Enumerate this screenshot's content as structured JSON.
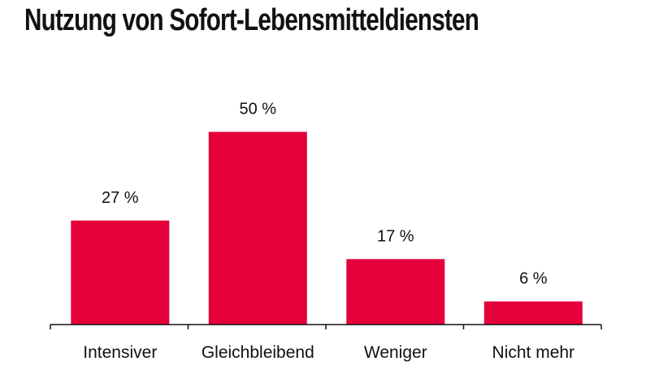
{
  "chart_data": {
    "type": "bar",
    "title": "Nutzung von Sofort-Lebensmitteldiensten",
    "categories": [
      "Intensiver",
      "Gleichbleibend",
      "Weniger",
      "Nicht mehr"
    ],
    "values": [
      27,
      50,
      17,
      6
    ],
    "data_labels": [
      "27 %",
      "50 %",
      "17 %",
      "6 %"
    ],
    "unit": "%",
    "xlabel": "",
    "ylabel": "",
    "ylim": [
      0,
      60
    ],
    "grid": false,
    "legend": "none",
    "bar_color": "#e4003b",
    "axis_color": "#111111"
  }
}
